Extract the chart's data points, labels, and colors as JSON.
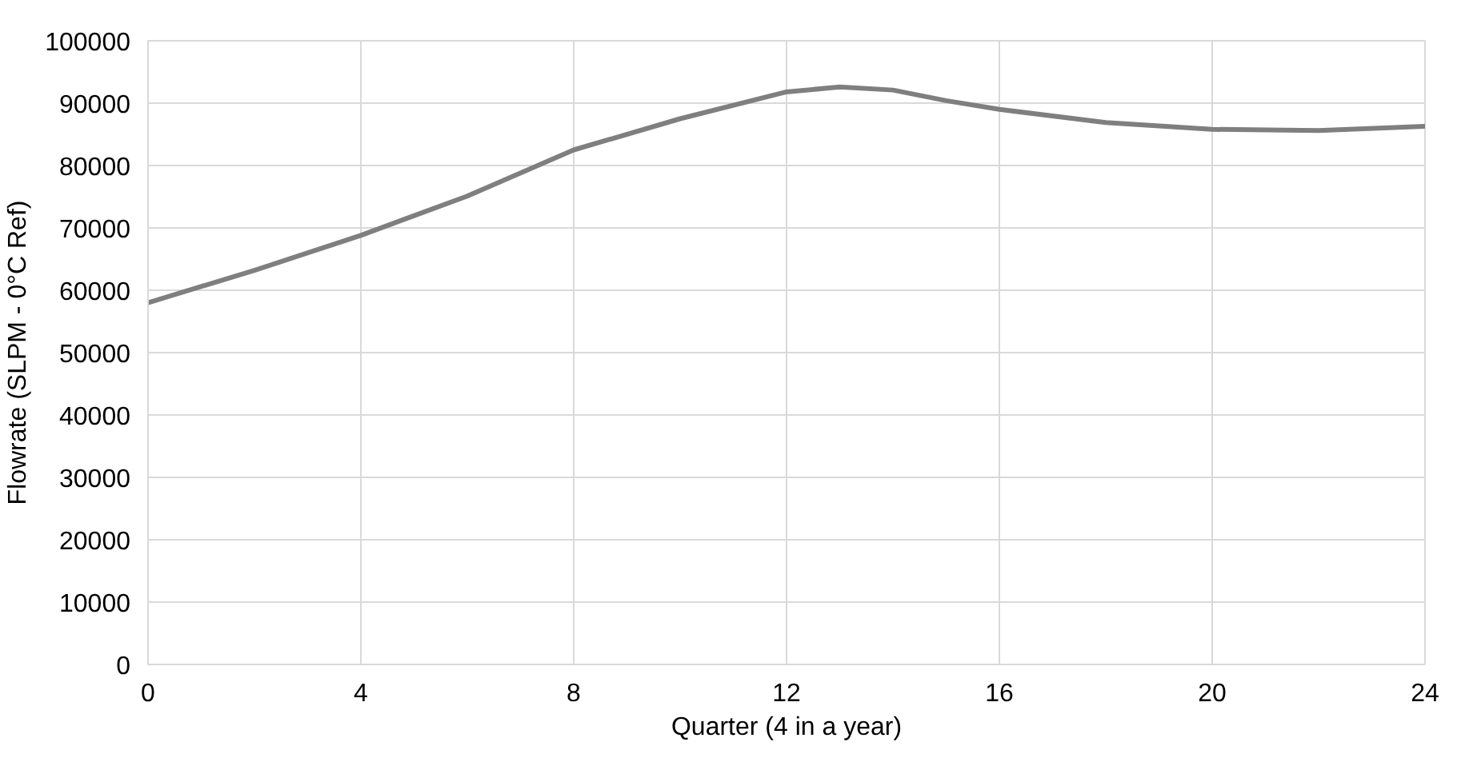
{
  "chart_data": {
    "type": "line",
    "xlabel": "Quarter (4 in a year)",
    "ylabel": "Flowrate (SLPM - 0°C Ref)",
    "x": [
      0,
      2,
      4,
      6,
      8,
      10,
      12,
      13,
      14,
      15,
      16,
      18,
      20,
      22,
      24
    ],
    "series": [
      {
        "color": "#7f7f7f",
        "values": [
          58000,
          63200,
          68800,
          75100,
          82500,
          87500,
          91800,
          92600,
          92100,
          90400,
          89000,
          86900,
          85800,
          85600,
          86300
        ]
      }
    ],
    "xlim": [
      0,
      24
    ],
    "xticks": [
      0,
      4,
      8,
      12,
      16,
      20,
      24
    ],
    "ylim": [
      0,
      100000
    ],
    "yticks": [
      0,
      10000,
      20000,
      30000,
      40000,
      50000,
      60000,
      70000,
      80000,
      90000,
      100000
    ],
    "grid": true,
    "marker": "none",
    "line_style": "solid"
  }
}
